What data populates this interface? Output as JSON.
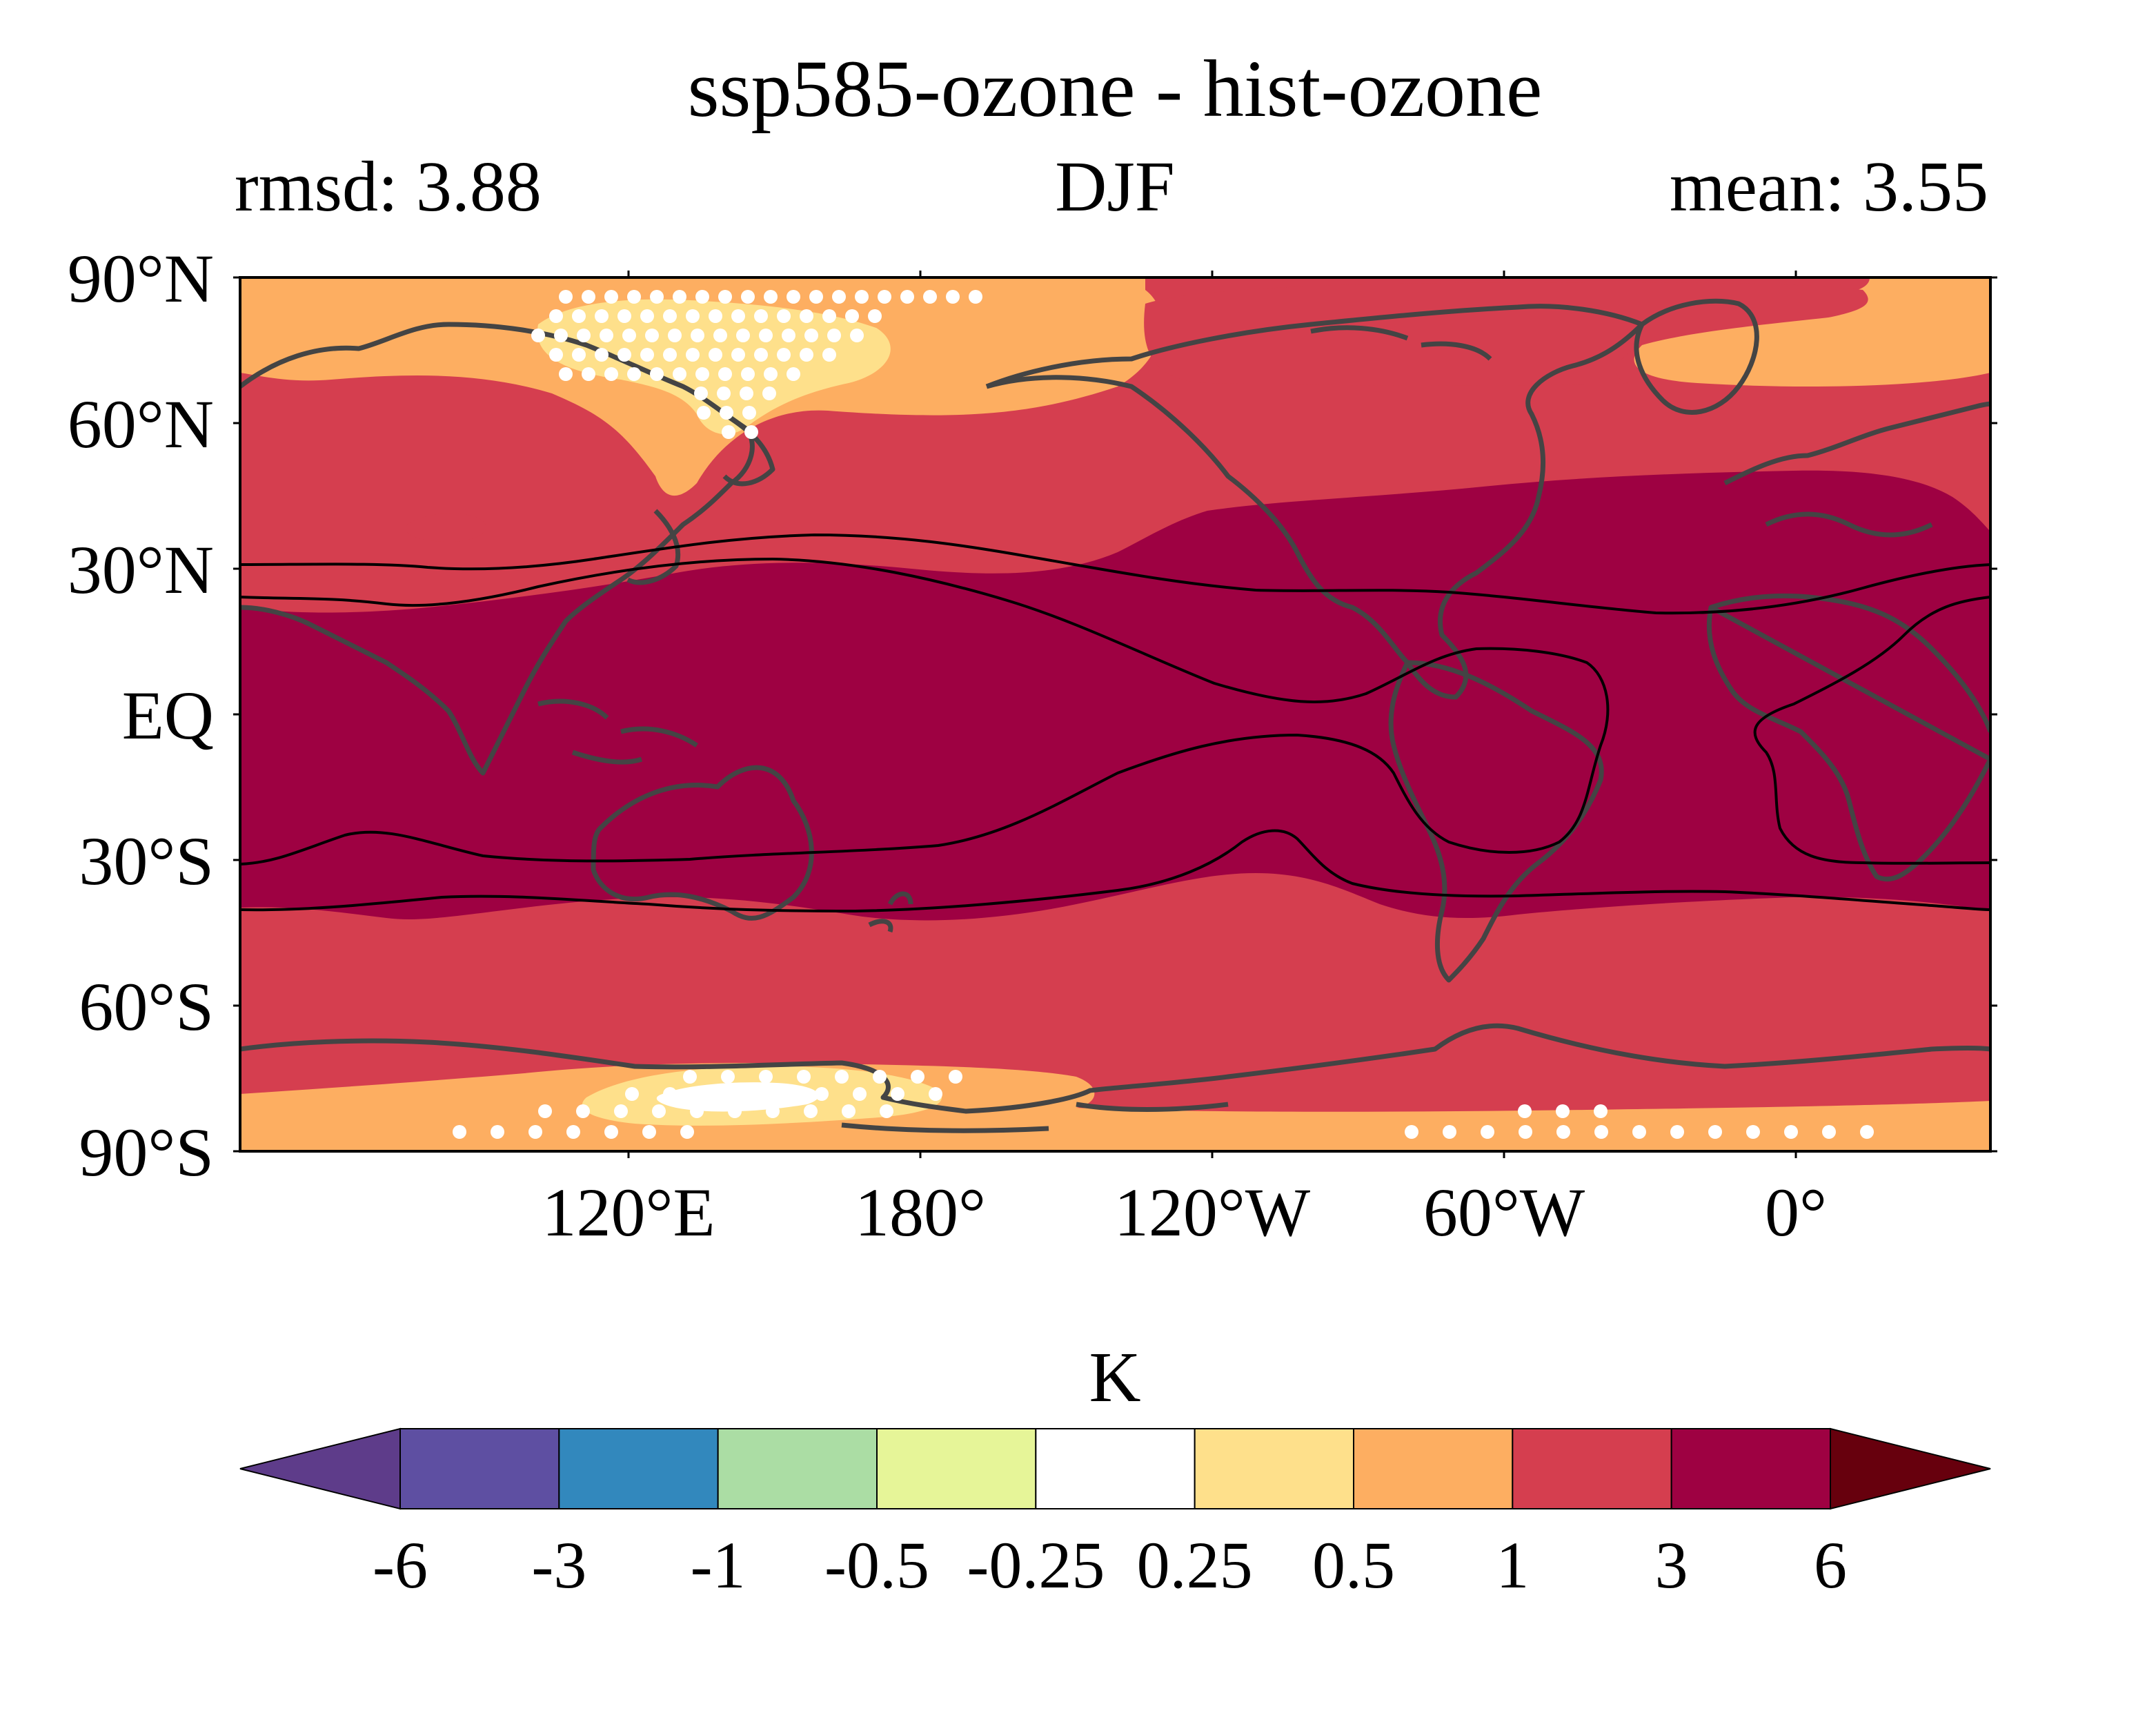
{
  "title": "ssp585-ozone - hist-ozone",
  "subtitle_left": "rmsd: 3.88",
  "subtitle_center": "DJF",
  "subtitle_right": "mean: 3.55",
  "map": {
    "projection": "PlateCarree",
    "central_longitude": 180,
    "lat_ticks": [
      "90°N",
      "60°N",
      "30°N",
      "EQ",
      "30°S",
      "60°S",
      "90°S"
    ],
    "lon_ticks": [
      "120°E",
      "180°",
      "120°W",
      "60°W",
      "0°"
    ],
    "stippling_color": "#ffffff",
    "coastline_color": "#444444",
    "contour_line_color": "#000000"
  },
  "colorbar": {
    "label": "K",
    "extend": "both",
    "levels": [
      "-6",
      "-3",
      "-1",
      "-0.5",
      "-0.25",
      "0.25",
      "0.5",
      "1",
      "3",
      "6"
    ],
    "under_color": "#5e3c8a",
    "over_color": "#67000d",
    "colors": [
      "#5e4fa2",
      "#3288bd",
      "#abdda4",
      "#e6f598",
      "#ffffff",
      "#fee08b",
      "#fdae61",
      "#d53e4f",
      "#9e0142"
    ]
  }
}
